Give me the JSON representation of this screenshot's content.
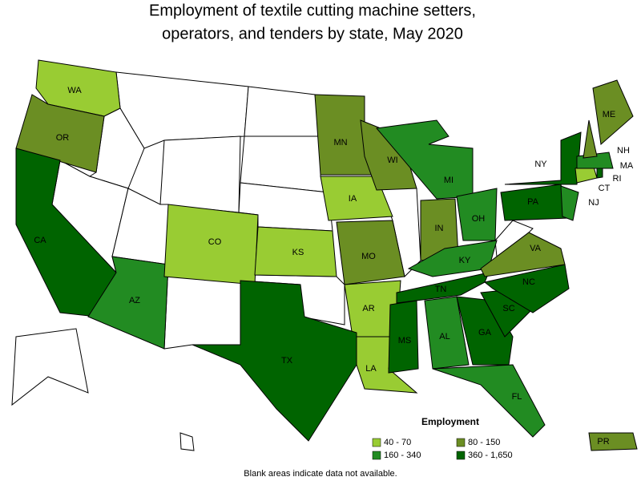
{
  "title_lines": [
    "Employment of textile cutting machine setters,",
    "operators, and tenders by state, May 2020"
  ],
  "legend": {
    "title": "Employment",
    "entries": [
      {
        "label": "40 - 70",
        "color": "#99cc33"
      },
      {
        "label": "80 - 150",
        "color": "#6b8e23"
      },
      {
        "label": "160 - 340",
        "color": "#228b22"
      },
      {
        "label": "360 - 1,650",
        "color": "#006400"
      }
    ]
  },
  "states": [
    {
      "label": "WA",
      "bin": 0
    },
    {
      "label": "OR",
      "bin": 1
    },
    {
      "label": "CA",
      "bin": 3
    },
    {
      "label": "AZ",
      "bin": 2
    },
    {
      "label": "CO",
      "bin": 0
    },
    {
      "label": "KS",
      "bin": 0
    },
    {
      "label": "IA",
      "bin": 0
    },
    {
      "label": "MN",
      "bin": 1
    },
    {
      "label": "WI",
      "bin": 1
    },
    {
      "label": "MI",
      "bin": 2
    },
    {
      "label": "IN",
      "bin": 1
    },
    {
      "label": "OH",
      "bin": 2
    },
    {
      "label": "KY",
      "bin": 2
    },
    {
      "label": "MO",
      "bin": 1
    },
    {
      "label": "AR",
      "bin": 0
    },
    {
      "label": "LA",
      "bin": 0
    },
    {
      "label": "TX",
      "bin": 3
    },
    {
      "label": "MS",
      "bin": 3
    },
    {
      "label": "AL",
      "bin": 2
    },
    {
      "label": "GA",
      "bin": 3
    },
    {
      "label": "FL",
      "bin": 2
    },
    {
      "label": "SC",
      "bin": 3
    },
    {
      "label": "NC",
      "bin": 3
    },
    {
      "label": "TN",
      "bin": 3
    },
    {
      "label": "VA",
      "bin": 1
    },
    {
      "label": "PA",
      "bin": 3
    },
    {
      "label": "NY",
      "bin": 3
    },
    {
      "label": "NJ",
      "bin": 2
    },
    {
      "label": "CT",
      "bin": 0
    },
    {
      "label": "MA",
      "bin": 2
    },
    {
      "label": "RI",
      "bin": 3
    },
    {
      "label": "NH",
      "bin": 1
    },
    {
      "label": "ME",
      "bin": 1
    },
    {
      "label": "PR",
      "bin": 1
    }
  ],
  "footnote": "Blank areas indicate data not available."
}
